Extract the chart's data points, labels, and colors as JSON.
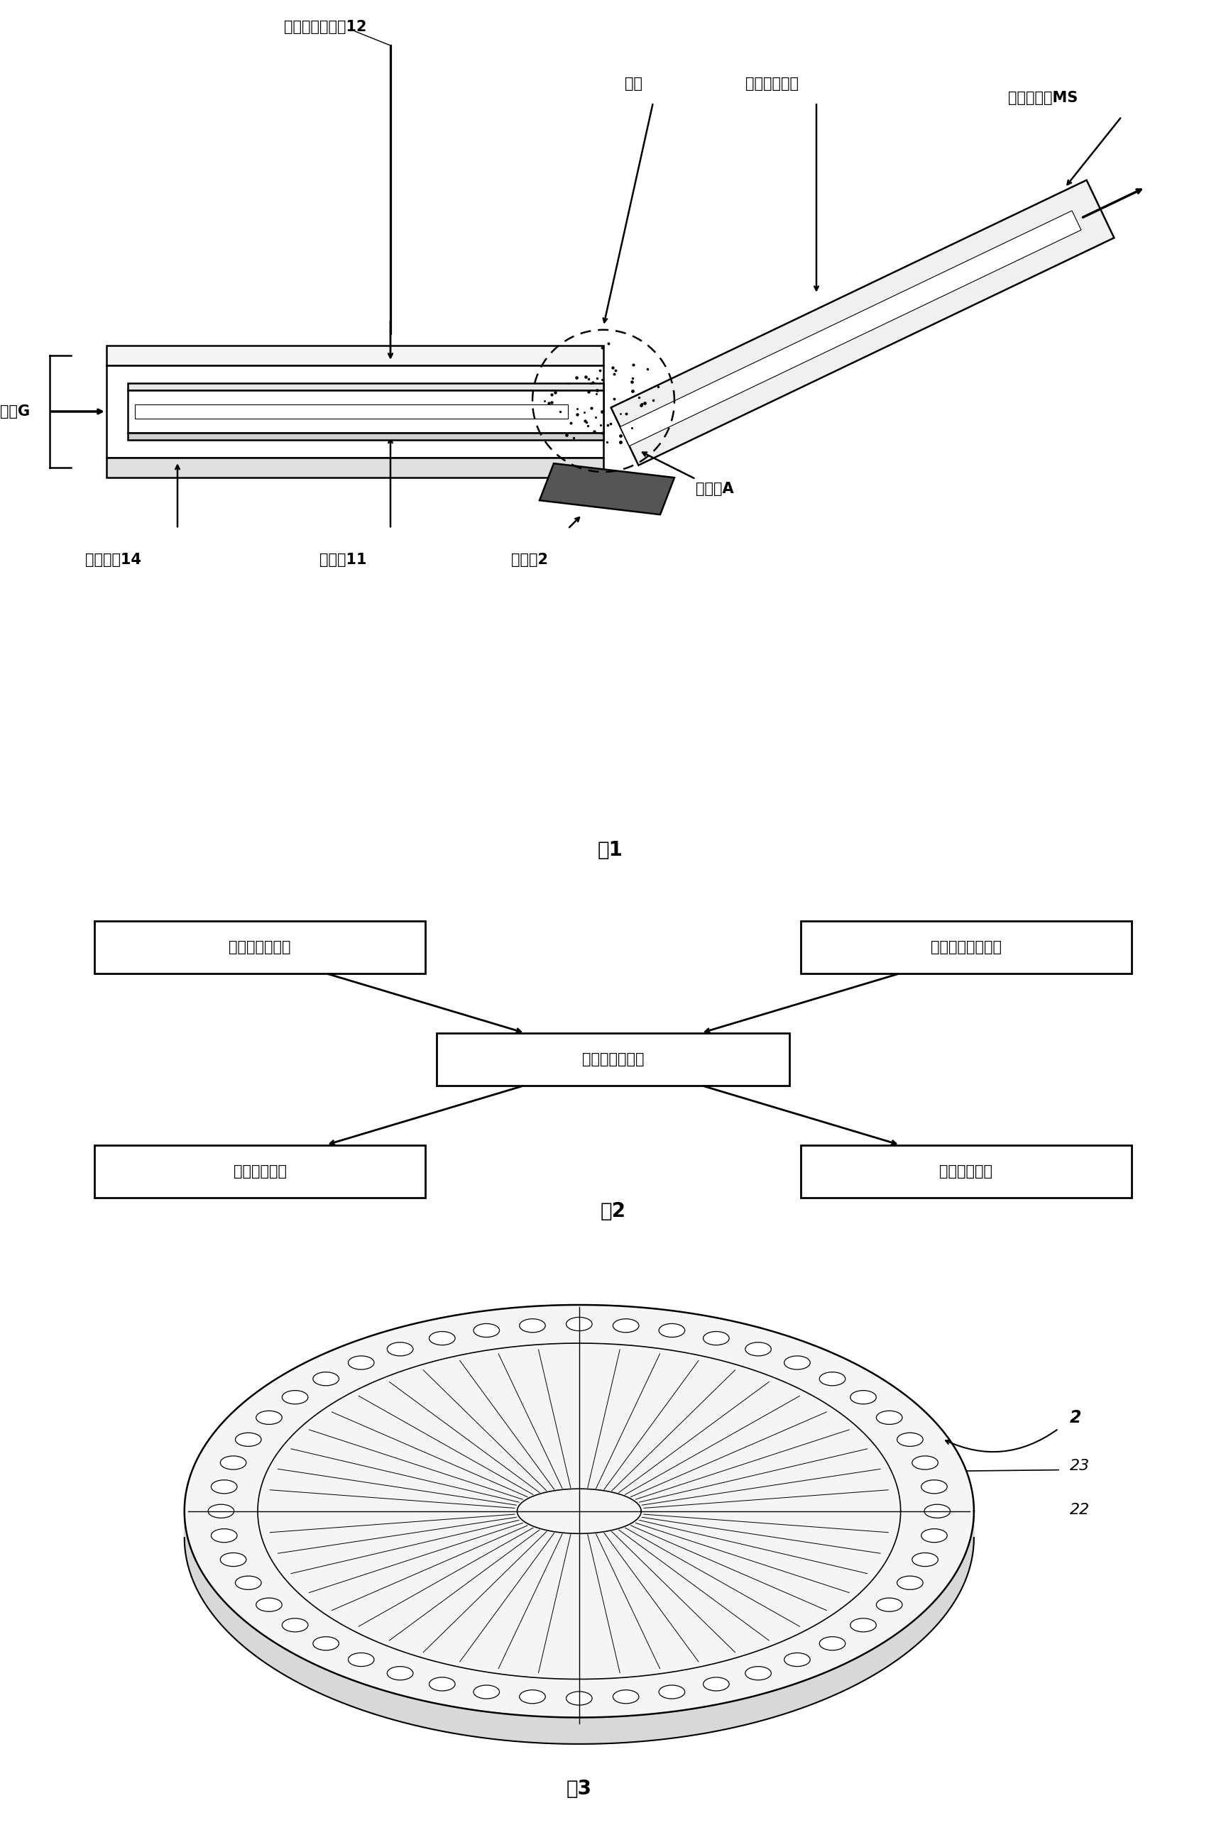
{
  "bg_color": "#ffffff",
  "fig1_caption": "图1",
  "fig2_caption": "图2",
  "fig3_caption": "图3",
  "fig1_labels": {
    "gaolv_elec": "高压电晕放电针12",
    "zhenjian": "针尖",
    "zhipu_inlet": "质谱仪进样管",
    "ion_ms": "离子流进入MS",
    "qiliu_G": "气流G",
    "jiare": "加热装置14",
    "maoxiguan": "毛细管11",
    "yangpinpan": "样品盘2",
    "dianliqv": "电离区A"
  },
  "fig2_labels": {
    "center": "显示与控制系统",
    "top_left": "高通量进样系统",
    "top_right": "试剂离子产生系统",
    "bottom_left": "联接支撑系统",
    "bottom_right": "多维调节系统"
  },
  "fig3_labels": {
    "outer": "2",
    "mid": "23",
    "inner": "22"
  }
}
